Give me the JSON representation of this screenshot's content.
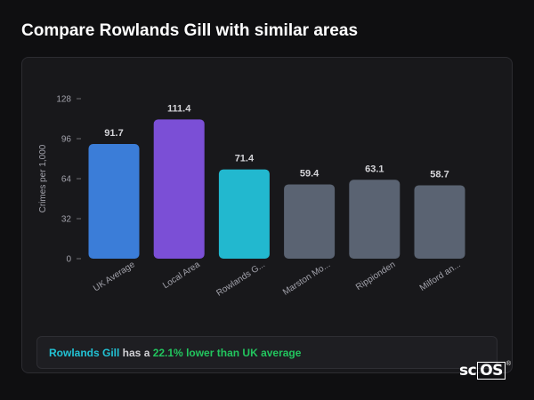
{
  "page": {
    "title": "Compare Rowlands Gill with similar areas"
  },
  "chart_data": {
    "type": "bar",
    "ylabel": "Crimes per 1,000",
    "ylim": [
      0,
      128
    ],
    "yticks": [
      0,
      32,
      64,
      96,
      128
    ],
    "categories": [
      "UK Average",
      "Local Area",
      "Rowlands G...",
      "Marston Mo...",
      "Rippionden",
      "Milford an..."
    ],
    "values": [
      91.7,
      111.4,
      71.4,
      59.4,
      63.1,
      58.7
    ],
    "value_labels": [
      "91.7",
      "111.4",
      "71.4",
      "59.4",
      "63.1",
      "58.7"
    ],
    "colors": [
      "#3b7dd8",
      "#7b4fd6",
      "#22b8cf",
      "#5a6372",
      "#5a6372",
      "#5a6372"
    ]
  },
  "summary": {
    "area_name": "Rowlands Gill",
    "middle_text": " has a ",
    "difference": "22.1% lower than UK average"
  },
  "logo": {
    "prefix": "sc",
    "boxed": "OS",
    "mark": "®"
  }
}
